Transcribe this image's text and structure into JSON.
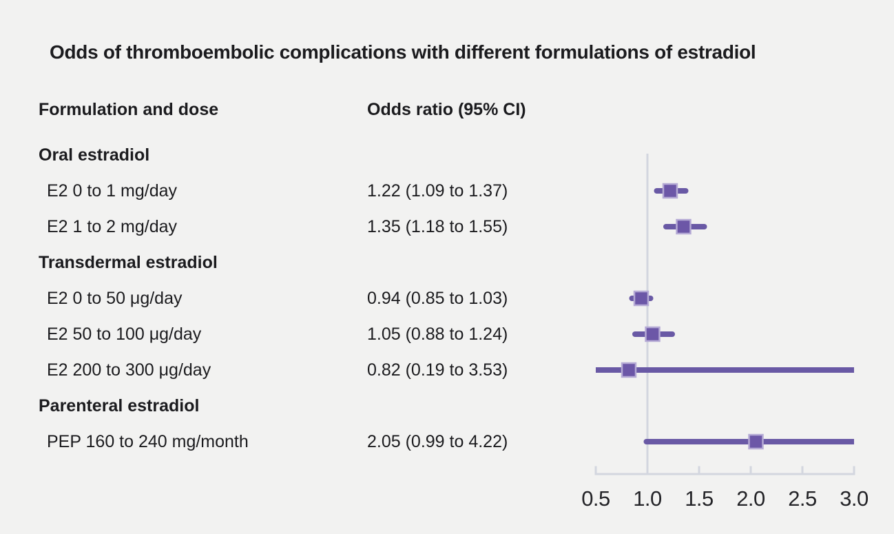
{
  "title": "Odds of thromboembolic complications with different formulations of estradiol",
  "table": {
    "col1_header": "Formulation and dose",
    "col2_header": "Odds ratio (95% CI)"
  },
  "chart_data": {
    "type": "forest",
    "title": "Odds of thromboembolic complications with different formulations of estradiol",
    "x_axis": {
      "min": 0.5,
      "max": 3.0,
      "reference_line": 1.0,
      "ticks": [
        0.5,
        1.0,
        1.5,
        2.0,
        2.5,
        3.0
      ],
      "tick_labels": [
        "0.5",
        "1.0",
        "1.5",
        "2.0",
        "2.5",
        "3.0"
      ]
    },
    "rows": [
      {
        "kind": "group",
        "label": "Oral estradiol"
      },
      {
        "kind": "item",
        "label": "E2 0 to 1 mg/day",
        "or_text": "1.22 (1.09 to 1.37)",
        "or": 1.22,
        "lo": 1.09,
        "hi": 1.37
      },
      {
        "kind": "item",
        "label": "E2 1 to 2 mg/day",
        "or_text": "1.35 (1.18 to 1.55)",
        "or": 1.35,
        "lo": 1.18,
        "hi": 1.55
      },
      {
        "kind": "group",
        "label": "Transdermal estradiol"
      },
      {
        "kind": "item",
        "label": "E2 0 to 50 μg/day",
        "or_text": "0.94 (0.85 to 1.03)",
        "or": 0.94,
        "lo": 0.85,
        "hi": 1.03
      },
      {
        "kind": "item",
        "label": "E2 50 to 100 μg/day",
        "or_text": "1.05 (0.88 to 1.24)",
        "or": 1.05,
        "lo": 0.88,
        "hi": 1.24
      },
      {
        "kind": "item",
        "label": "E2 200 to 300 μg/day",
        "or_text": "0.82 (0.19 to 3.53)",
        "or": 0.82,
        "lo": 0.19,
        "hi": 3.53
      },
      {
        "kind": "group",
        "label": "Parenteral estradiol"
      },
      {
        "kind": "item",
        "label": "PEP 160 to 240 mg/month",
        "or_text": "2.05 (0.99 to 4.22)",
        "or": 2.05,
        "lo": 0.99,
        "hi": 4.22
      }
    ]
  },
  "colors": {
    "background": "#f2f2f1",
    "text": "#1b1b1e",
    "ci_line": "#6959a5",
    "marker_fill": "#6c57a7",
    "marker_border": "#b5aad5",
    "axis_line": "#d3d6df"
  }
}
